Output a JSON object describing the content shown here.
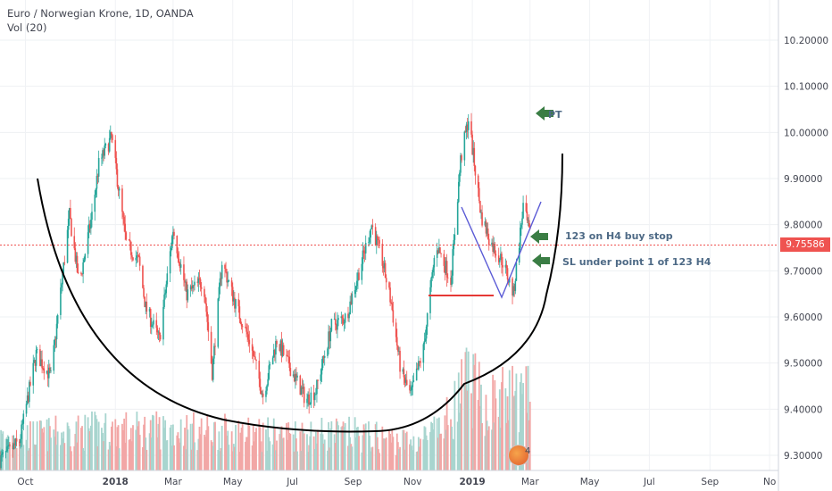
{
  "header": {
    "title": "Euro / Norwegian Krone, 1D, OANDA",
    "volume": "Vol (20)"
  },
  "annotations": {
    "target": "PT",
    "entry": "123 on H4 buy stop",
    "stop": "SL under point 1 of 123 H4"
  },
  "last_price": "9.75586",
  "logo_count": "4",
  "colors": {
    "up": "#26a69a",
    "down": "#ef5350",
    "vol_up": "#a8d5cf",
    "vol_down": "#f2a7a6",
    "arrow": "#3a7d44",
    "wedge": "#5b5bd6",
    "cup": "#000000",
    "support": "#e53935"
  },
  "chart_data": {
    "type": "candlestick",
    "title": "Euro / Norwegian Krone, 1D, OANDA",
    "ylabel": "",
    "ylim": [
      9.27,
      10.38
    ],
    "y_ticks": [
      "10.20000",
      "10.10000",
      "10.00000",
      "9.90000",
      "9.80000",
      "9.70000",
      "9.60000",
      "9.50000",
      "9.40000",
      "9.30000"
    ],
    "x_ticks": [
      "Oct",
      "2018",
      "Mar",
      "May",
      "Jul",
      "Sep",
      "Nov",
      "2019",
      "Mar",
      "May",
      "Jul",
      "Sep",
      "No"
    ],
    "x_range": [
      "2017-09-05",
      "2019-11-10"
    ],
    "last_price": 9.75586,
    "close_path": [
      [
        "2017-09-05",
        9.29
      ],
      [
        "2017-09-25",
        9.33
      ],
      [
        "2017-10-12",
        9.52
      ],
      [
        "2017-10-27",
        9.47
      ],
      [
        "2017-11-15",
        9.82
      ],
      [
        "2017-11-25",
        9.67
      ],
      [
        "2017-12-08",
        9.82
      ],
      [
        "2017-12-15",
        9.93
      ],
      [
        "2017-12-28",
        9.99
      ],
      [
        "2018-01-12",
        9.76
      ],
      [
        "2018-01-25",
        9.72
      ],
      [
        "2018-02-01",
        9.62
      ],
      [
        "2018-02-15",
        9.55
      ],
      [
        "2018-03-01",
        9.79
      ],
      [
        "2018-03-15",
        9.65
      ],
      [
        "2018-04-01",
        9.68
      ],
      [
        "2018-04-10",
        9.48
      ],
      [
        "2018-04-20",
        9.72
      ],
      [
        "2018-05-05",
        9.62
      ],
      [
        "2018-05-18",
        9.55
      ],
      [
        "2018-06-01",
        9.43
      ],
      [
        "2018-06-15",
        9.55
      ],
      [
        "2018-07-01",
        9.48
      ],
      [
        "2018-07-15",
        9.42
      ],
      [
        "2018-07-25",
        9.44
      ],
      [
        "2018-08-10",
        9.58
      ],
      [
        "2018-08-25",
        9.6
      ],
      [
        "2018-09-10",
        9.72
      ],
      [
        "2018-09-20",
        9.8
      ],
      [
        "2018-10-01",
        9.72
      ],
      [
        "2018-10-10",
        9.63
      ],
      [
        "2018-10-20",
        9.48
      ],
      [
        "2018-10-30",
        9.43
      ],
      [
        "2018-11-12",
        9.53
      ],
      [
        "2018-11-25",
        9.76
      ],
      [
        "2018-12-10",
        9.68
      ],
      [
        "2018-12-20",
        9.94
      ],
      [
        "2018-12-28",
        10.03
      ],
      [
        "2019-01-10",
        9.82
      ],
      [
        "2019-01-20",
        9.76
      ],
      [
        "2019-02-01",
        9.72
      ],
      [
        "2019-02-12",
        9.65
      ],
      [
        "2019-02-22",
        9.84
      ],
      [
        "2019-03-03",
        9.75586
      ]
    ],
    "volume_ylim": [
      0,
      28
    ],
    "volume_path": [
      [
        "2017-09-05",
        8
      ],
      [
        "2017-12-15",
        10
      ],
      [
        "2018-03-01",
        10
      ],
      [
        "2018-06-01",
        9
      ],
      [
        "2018-09-01",
        9
      ],
      [
        "2018-11-01",
        7
      ],
      [
        "2018-12-01",
        10
      ],
      [
        "2018-12-28",
        22
      ],
      [
        "2019-01-15",
        16
      ],
      [
        "2019-02-15",
        19
      ],
      [
        "2019-03-03",
        17
      ]
    ]
  }
}
